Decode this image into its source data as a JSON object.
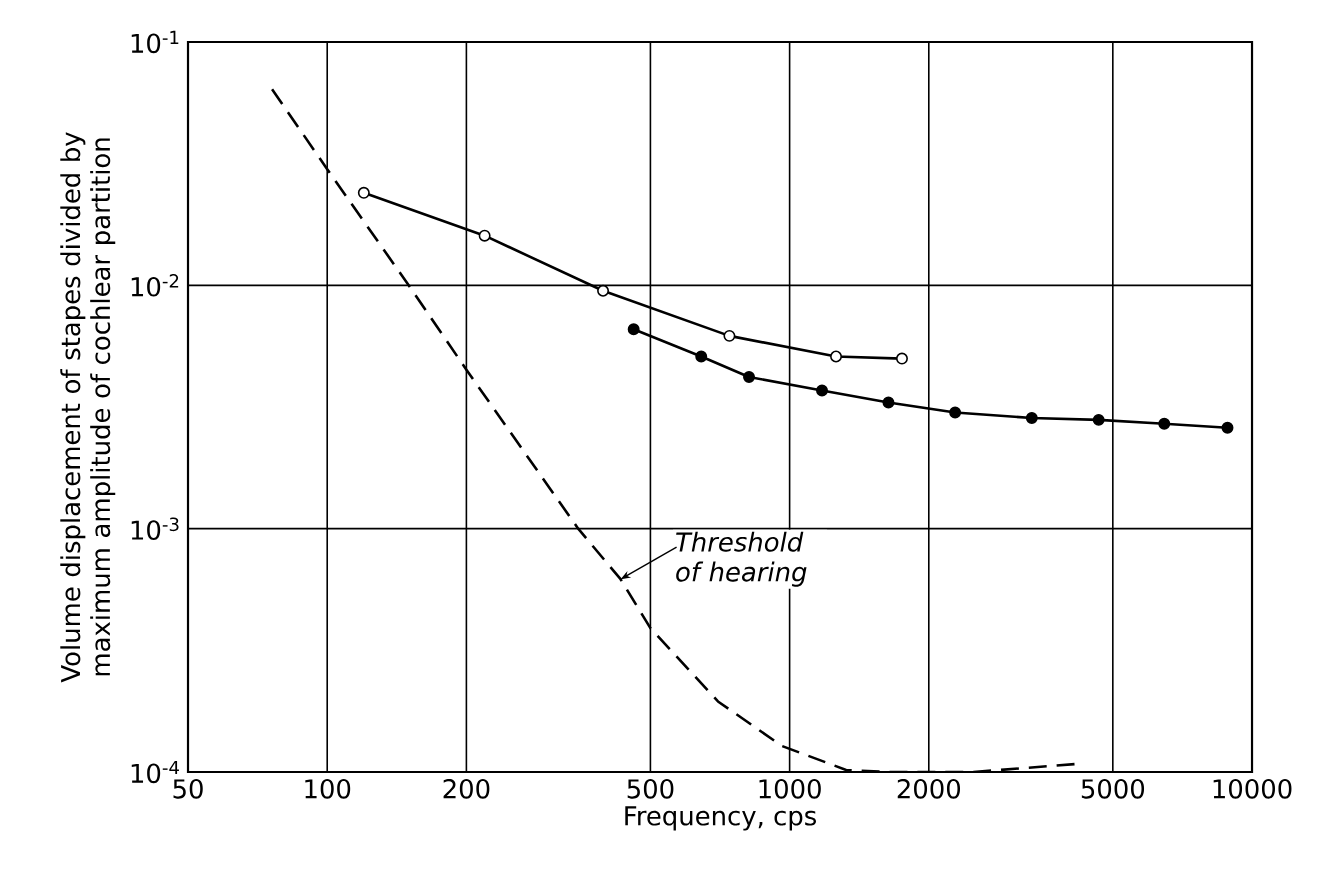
{
  "chart_data": {
    "type": "line",
    "xlabel": "Frequency, cps",
    "ylabel": "Volume displacement of stapes divided by maximum amplitude of cochlear partition",
    "log": "xy",
    "grid": true,
    "xlim": [
      50,
      10000
    ],
    "xticks": [
      50,
      100,
      200,
      500,
      1000,
      2000,
      5000,
      10000
    ],
    "ylim": [
      0.0001,
      0.1
    ],
    "yticks": [
      {
        "value": 0.1,
        "label": "10$^{-1}$"
      },
      {
        "value": 0.01,
        "label": "10$^{-2}$"
      },
      {
        "value": 0.001,
        "label": "10$^{-3}$"
      },
      {
        "value": 0.0001,
        "label": "10$^{-4}$"
      }
    ],
    "series": [
      {
        "color": "#000000",
        "marker": "circle",
        "line_style": "solid",
        "x": [
          120,
          219,
          395,
          741,
          1260,
          1750
        ],
        "values": [
          0.024,
          0.016,
          0.0095,
          0.0062,
          0.0051,
          0.005
        ]
      },
      {
        "color": "#000000",
        "marker": "circle",
        "line_style": "solid",
        "x": [
          460,
          644,
          817,
          1175,
          1636,
          2280,
          3340,
          4660,
          6460,
          8850
        ],
        "values": [
          0.0066,
          0.0051,
          0.0042,
          0.0037,
          0.0033,
          0.003,
          0.00285,
          0.0028,
          0.0027,
          0.0026
        ]
      },
      {
        "color": "#000000",
        "marker": "none",
        "line_style": "dashed",
        "x": [
          76,
          100,
          149,
          200,
          349,
          431,
          500,
          700,
          962,
          1325,
          1640,
          2500,
          4200
        ],
        "values": [
          0.064,
          0.03,
          0.0102,
          0.0045,
          0.001,
          0.00062,
          0.00039,
          0.000195,
          0.000128,
          0.000102,
          0.0001,
          0.0001,
          0.000108
        ]
      }
    ],
    "annotations": [
      {
        "text": "Threshold of hearing",
        "x": 431,
        "y": 0.00062
      }
    ]
  }
}
